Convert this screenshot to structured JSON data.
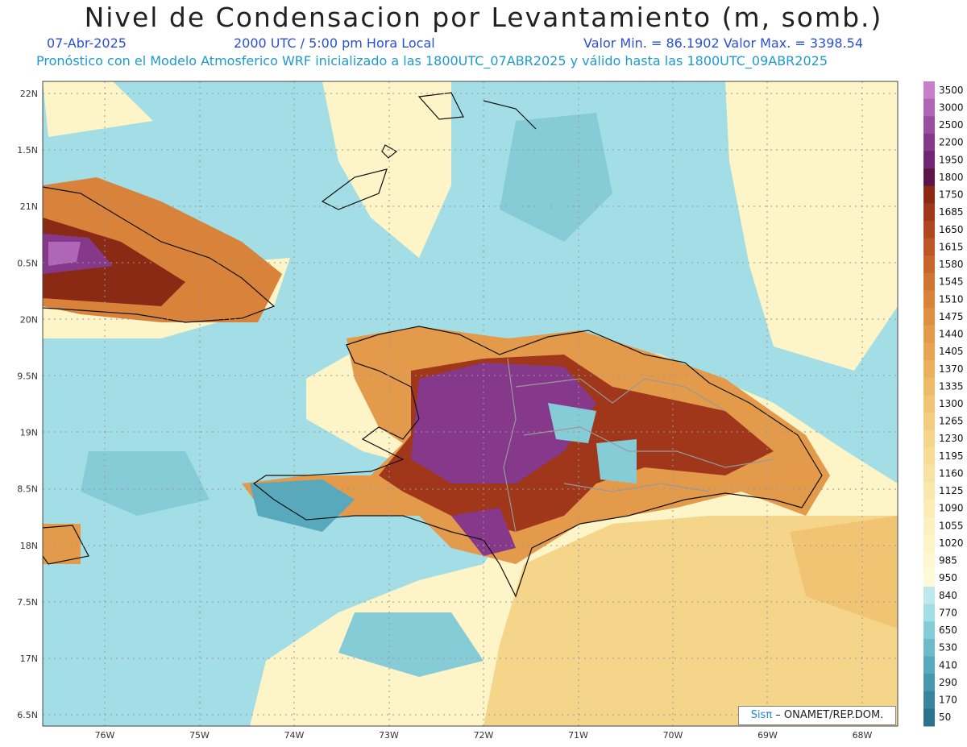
{
  "title": "Nivel de Condensacion por Levantamiento (m, somb.)",
  "date": "07-Abr-2025",
  "time": "2000 UTC / 5:00 pm Hora Local",
  "minmax": "Valor Min. = 86.1902  Valor Max. = 3398.54",
  "description": "Pronóstico con el Modelo Atmosferico WRF inicializado a las 1800UTC_07ABR2025 y válido hasta las  1800UTC_09ABR2025",
  "lat_labels": [
    "22N",
    "1.5N",
    "21N",
    "0.5N",
    "20N",
    "9.5N",
    "19N",
    "8.5N",
    "18N",
    "7.5N",
    "17N",
    "6.5N"
  ],
  "lon_labels": [
    "76W",
    "75W",
    "74W",
    "73W",
    "72W",
    "71W",
    "70W",
    "69W",
    "68W"
  ],
  "colorbar": {
    "labels": [
      "3500",
      "3000",
      "2500",
      "2200",
      "1950",
      "1800",
      "1750",
      "1685",
      "1650",
      "1615",
      "1580",
      "1545",
      "1510",
      "1475",
      "1440",
      "1405",
      "1370",
      "1335",
      "1300",
      "1265",
      "1230",
      "1195",
      "1160",
      "1125",
      "1090",
      "1055",
      "1020",
      "985",
      "950",
      "840",
      "770",
      "650",
      "530",
      "410",
      "290",
      "170",
      "50"
    ],
    "colors": [
      "#c77fc8",
      "#b066b6",
      "#9a4e9f",
      "#86398a",
      "#722573",
      "#5c1547",
      "#8a2a14",
      "#a0361a",
      "#b04620",
      "#bd5626",
      "#c7652c",
      "#d07432",
      "#d8823a",
      "#de8f42",
      "#e39a4a",
      "#e7a553",
      "#ebb05d",
      "#eeba67",
      "#f1c473",
      "#f3cd7f",
      "#f5d58a",
      "#f7dc96",
      "#f8e2a1",
      "#f9e7ab",
      "#fbecb5",
      "#fcf0be",
      "#fdf4c7",
      "#fef7cf",
      "#fef9d6",
      "#bfe8ec",
      "#a3dde5",
      "#86ccd6",
      "#6dbacb",
      "#59a9bd",
      "#4897ad",
      "#3a859e",
      "#2d728d"
    ]
  },
  "credit": {
    "logo": "Sisπ",
    "text": " – ONAMET/REP.DOM."
  }
}
